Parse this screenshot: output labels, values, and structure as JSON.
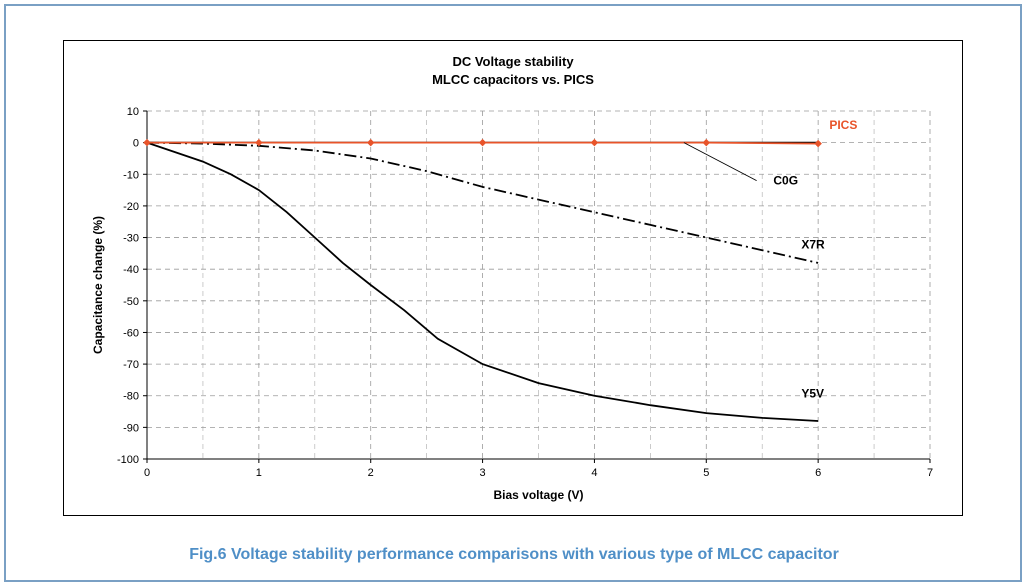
{
  "caption": "Fig.6 Voltage stability performance comparisons with various type of MLCC capacitor",
  "chart_data": {
    "type": "line",
    "title": "DC Voltage stability",
    "subtitle": "MLCC capacitors vs. PICS",
    "xlabel": "Bias voltage (V)",
    "ylabel": "Capacitance change (%)",
    "xlim": [
      0,
      7
    ],
    "ylim": [
      -100,
      10
    ],
    "xticks": [
      0,
      1,
      2,
      3,
      4,
      5,
      6,
      7
    ],
    "yticks": [
      10,
      0,
      -10,
      -20,
      -30,
      -40,
      -50,
      -60,
      -70,
      -80,
      -90,
      -100
    ],
    "grid": "dashed",
    "colors": {
      "PICS": "#e8542a",
      "C0G": "#000000",
      "X7R": "#000000",
      "Y5V": "#000000"
    },
    "series": [
      {
        "name": "PICS",
        "style": "solid",
        "markers": true,
        "x": [
          0,
          1,
          2,
          3,
          4,
          5,
          6
        ],
        "y": [
          0,
          0,
          0,
          0,
          0,
          0,
          -0.3
        ]
      },
      {
        "name": "C0G",
        "style": "solid",
        "markers": false,
        "x": [
          0,
          1,
          2,
          3,
          4,
          5,
          6
        ],
        "y": [
          0,
          0,
          0,
          0,
          0,
          0,
          0
        ]
      },
      {
        "name": "X7R",
        "style": "dashdot",
        "markers": false,
        "x": [
          0,
          0.5,
          1,
          1.5,
          2,
          2.5,
          3,
          3.5,
          4,
          4.5,
          5,
          5.5,
          6
        ],
        "y": [
          0,
          -0.3,
          -1,
          -2.5,
          -5,
          -9,
          -14,
          -18,
          -22,
          -26,
          -30,
          -34,
          -38
        ]
      },
      {
        "name": "Y5V",
        "style": "solid",
        "markers": false,
        "x": [
          0,
          0.25,
          0.5,
          0.75,
          1,
          1.25,
          1.5,
          1.75,
          2,
          2.3,
          2.6,
          3,
          3.5,
          4,
          4.5,
          5,
          5.5,
          6
        ],
        "y": [
          0,
          -3,
          -6,
          -10,
          -15,
          -22,
          -30,
          -38,
          -45,
          -53,
          -62,
          -70,
          -76,
          -80,
          -83,
          -85.5,
          -87,
          -88
        ]
      }
    ],
    "annotations": [
      "PICS",
      "C0G",
      "X7R",
      "Y5V"
    ]
  }
}
